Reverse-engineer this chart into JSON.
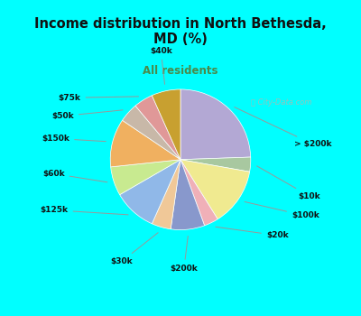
{
  "title": "Income distribution in North Bethesda,\nMD (%)",
  "subtitle": "All residents",
  "title_color": "#111111",
  "subtitle_color": "#4a8a4a",
  "bg_color": "#00ffff",
  "chart_bg_color": "#d8f0e4",
  "watermark": "ⓘ City-Data.com",
  "slices": [
    {
      "label": "> $200k",
      "value": 22,
      "color": "#b3a8d4"
    },
    {
      "label": "$10k",
      "value": 3,
      "color": "#a8c8a0"
    },
    {
      "label": "$100k",
      "value": 12,
      "color": "#f0ea90"
    },
    {
      "label": "$20k",
      "value": 3,
      "color": "#f0b0b8"
    },
    {
      "label": "$200k",
      "value": 7,
      "color": "#8898cc"
    },
    {
      "label": "$30k",
      "value": 4,
      "color": "#f0c898"
    },
    {
      "label": "$125k",
      "value": 9,
      "color": "#90b8e8"
    },
    {
      "label": "$60k",
      "value": 6,
      "color": "#c8ea90"
    },
    {
      "label": "$150k",
      "value": 10,
      "color": "#f0b060"
    },
    {
      "label": "$50k",
      "value": 4,
      "color": "#c8b8a8"
    },
    {
      "label": "$75k",
      "value": 4,
      "color": "#e09898"
    },
    {
      "label": "$40k",
      "value": 6,
      "color": "#c8a030"
    }
  ]
}
